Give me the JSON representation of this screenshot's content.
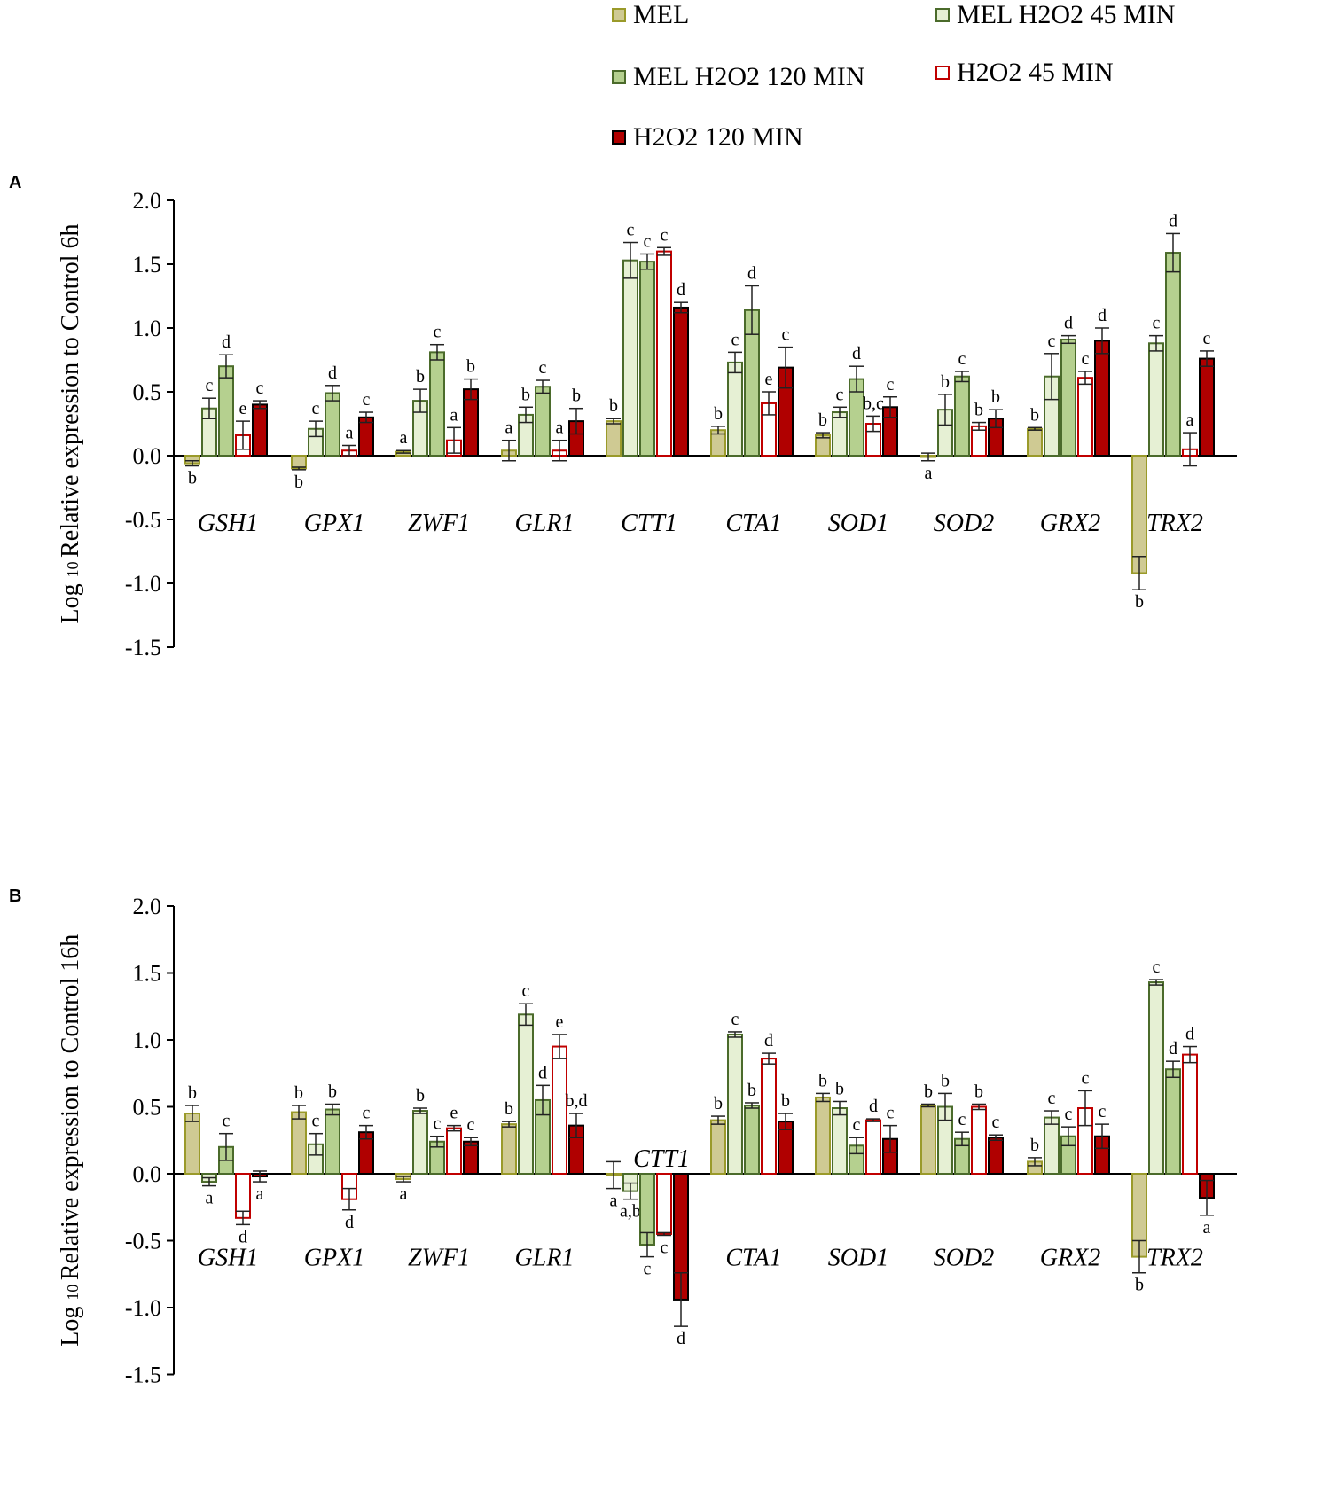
{
  "legend": [
    {
      "label": "MEL",
      "fill": "#cfca93",
      "stroke": "#9a9a2a"
    },
    {
      "label": "MEL H2O2 45 MIN",
      "fill": "#e6f0d4",
      "stroke": "#4b6b2b"
    },
    {
      "label": "MEL H2O2 120 MIN",
      "fill": "#b5d08f",
      "stroke": "#4b6b2b"
    },
    {
      "label": "H2O2 45 MIN",
      "fill": "#ffffff",
      "stroke": "#c00000"
    },
    {
      "label": "H2O2 120 MIN",
      "fill": "#b00000",
      "stroke": "#000000"
    }
  ],
  "chart_data": [
    {
      "type": "bar",
      "panel": "A",
      "ylabel": "Log 10 Relative expression to Control 6h",
      "ylim": [
        -1.5,
        2.0
      ],
      "yticks": [
        "2.0",
        "1.5",
        "1.0",
        "0.5",
        "0.0",
        "-0.5",
        "-1.0",
        "-1.5"
      ],
      "categories": [
        "GSH1",
        "GPX1",
        "ZWF1",
        "GLR1",
        "CTT1",
        "CTA1",
        "SOD1",
        "SOD2",
        "GRX2",
        "TRX2"
      ],
      "series": [
        {
          "name": "MEL",
          "values": [
            -0.06,
            -0.1,
            0.03,
            0.04,
            0.27,
            0.2,
            0.16,
            -0.01,
            0.21,
            -0.92
          ],
          "err": [
            0.02,
            0.01,
            0.01,
            0.08,
            0.02,
            0.03,
            0.02,
            0.03,
            0.01,
            0.13
          ],
          "letters": [
            "b",
            "b",
            "a",
            "a",
            "b",
            "b",
            "b",
            "a",
            "b",
            "b"
          ]
        },
        {
          "name": "MEL H2O2 45 MIN",
          "values": [
            0.37,
            0.21,
            0.43,
            0.32,
            1.53,
            0.73,
            0.34,
            0.36,
            0.62,
            0.88
          ],
          "err": [
            0.08,
            0.06,
            0.09,
            0.06,
            0.14,
            0.08,
            0.04,
            0.12,
            0.18,
            0.06
          ],
          "letters": [
            "c",
            "c",
            "b",
            "b",
            "c",
            "c",
            "c",
            "b",
            "c",
            "c"
          ]
        },
        {
          "name": "MEL H2O2 120 MIN",
          "values": [
            0.7,
            0.49,
            0.81,
            0.54,
            1.52,
            1.14,
            0.6,
            0.62,
            0.91,
            1.59
          ],
          "err": [
            0.09,
            0.06,
            0.06,
            0.05,
            0.06,
            0.19,
            0.1,
            0.04,
            0.03,
            0.15
          ],
          "letters": [
            "d",
            "d",
            "c",
            "c",
            "c",
            "d",
            "d",
            "c",
            "d",
            "d"
          ]
        },
        {
          "name": "H2O2 45 MIN",
          "values": [
            0.16,
            0.04,
            0.12,
            0.04,
            1.6,
            0.41,
            0.25,
            0.23,
            0.61,
            0.05
          ],
          "err": [
            0.11,
            0.04,
            0.1,
            0.08,
            0.03,
            0.09,
            0.06,
            0.03,
            0.05,
            0.13
          ],
          "letters": [
            "e",
            "a",
            "a",
            "a",
            "c",
            "e",
            "b,c",
            "b",
            "c",
            "a"
          ]
        },
        {
          "name": "H2O2 120 MIN",
          "values": [
            0.4,
            0.3,
            0.52,
            0.27,
            1.16,
            0.69,
            0.38,
            0.29,
            0.9,
            0.76
          ],
          "err": [
            0.03,
            0.04,
            0.08,
            0.1,
            0.04,
            0.16,
            0.08,
            0.07,
            0.1,
            0.06
          ],
          "letters": [
            "c",
            "c",
            "b",
            "b",
            "d",
            "c",
            "c",
            "b",
            "d",
            "c"
          ]
        }
      ]
    },
    {
      "type": "bar",
      "panel": "B",
      "ylabel": "Log 10 Relative expression to Control 16h",
      "ylim": [
        -1.5,
        2.0
      ],
      "yticks": [
        "2.0",
        "1.5",
        "1.0",
        "0.5",
        "0.0",
        "-0.5",
        "-1.0",
        "-1.5"
      ],
      "categories": [
        "GSH1",
        "GPX1",
        "ZWF1",
        "GLR1",
        "CTT1",
        "CTA1",
        "SOD1",
        "SOD2",
        "GRX2",
        "TRX2"
      ],
      "series": [
        {
          "name": "MEL",
          "values": [
            0.45,
            0.46,
            -0.04,
            0.37,
            -0.01,
            0.4,
            0.57,
            0.51,
            0.09,
            -0.62
          ],
          "err": [
            0.06,
            0.05,
            0.02,
            0.02,
            0.1,
            0.03,
            0.03,
            0.01,
            0.03,
            0.12
          ],
          "letters": [
            "b",
            "b",
            "a",
            "b",
            "a",
            "b",
            "b",
            "b",
            "b",
            "b"
          ]
        },
        {
          "name": "MEL H2O2 45 MIN",
          "values": [
            -0.06,
            0.22,
            0.47,
            1.19,
            -0.13,
            1.04,
            0.49,
            0.5,
            0.42,
            1.43
          ],
          "err": [
            0.03,
            0.08,
            0.02,
            0.08,
            0.06,
            0.02,
            0.05,
            0.1,
            0.05,
            0.02
          ],
          "letters": [
            "a",
            "c",
            "b",
            "c",
            "a,b",
            "c",
            "b",
            "b",
            "c",
            "c"
          ]
        },
        {
          "name": "MEL H2O2 120 MIN",
          "values": [
            0.2,
            0.48,
            0.24,
            0.55,
            -0.53,
            0.51,
            0.21,
            0.26,
            0.28,
            0.78
          ],
          "err": [
            0.1,
            0.04,
            0.04,
            0.11,
            0.09,
            0.02,
            0.06,
            0.05,
            0.07,
            0.06
          ],
          "letters": [
            "c",
            "b",
            "c",
            "d",
            "c",
            "b",
            "c",
            "c",
            "c",
            "d"
          ]
        },
        {
          "name": "H2O2 45 MIN",
          "values": [
            -0.33,
            -0.19,
            0.34,
            0.95,
            -0.45,
            0.86,
            0.4,
            0.5,
            0.49,
            0.89
          ],
          "err": [
            0.05,
            0.08,
            0.02,
            0.09,
            0.01,
            0.04,
            0.01,
            0.02,
            0.13,
            0.06
          ],
          "letters": [
            "d",
            "d",
            "e",
            "e",
            "c",
            "d",
            "d",
            "b",
            "c",
            "d"
          ]
        },
        {
          "name": "H2O2 120 MIN",
          "values": [
            -0.02,
            0.31,
            0.24,
            0.36,
            -0.94,
            0.39,
            0.26,
            0.27,
            0.28,
            -0.18
          ],
          "err": [
            0.04,
            0.05,
            0.03,
            0.09,
            0.2,
            0.06,
            0.1,
            0.02,
            0.09,
            0.13
          ],
          "letters": [
            "a",
            "c",
            "c",
            "b,d",
            "d",
            "b",
            "c",
            "c",
            "c",
            "a"
          ]
        }
      ]
    }
  ],
  "panel_labels": [
    "A",
    "B"
  ]
}
